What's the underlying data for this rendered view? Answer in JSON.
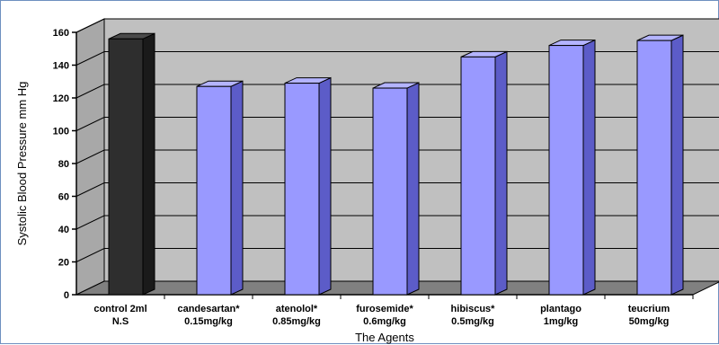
{
  "chart_data": {
    "type": "bar",
    "title": "",
    "xlabel": "The Agents",
    "ylabel": "Systolic Blood Pressure mm Hg",
    "ylim": [
      0,
      160
    ],
    "yticks": [
      0,
      20,
      40,
      60,
      80,
      100,
      120,
      140,
      160
    ],
    "categories": [
      [
        "control 2ml",
        "N.S"
      ],
      [
        "candesartan*",
        "0.15mg/kg"
      ],
      [
        "atenolol*",
        "0.85mg/kg"
      ],
      [
        "furosemide*",
        "0.6mg/kg"
      ],
      [
        "hibiscus*",
        "0.5mg/kg"
      ],
      [
        "plantago",
        "1mg/kg"
      ],
      [
        "teucrium",
        "50mg/kg"
      ]
    ],
    "values": [
      156,
      127,
      129,
      126,
      145,
      152,
      155
    ],
    "grid": true,
    "colors": {
      "control": "#2e2e2e",
      "treatment": "#9999ff",
      "wall": "#c0c0c0",
      "floor": "#808080"
    }
  }
}
